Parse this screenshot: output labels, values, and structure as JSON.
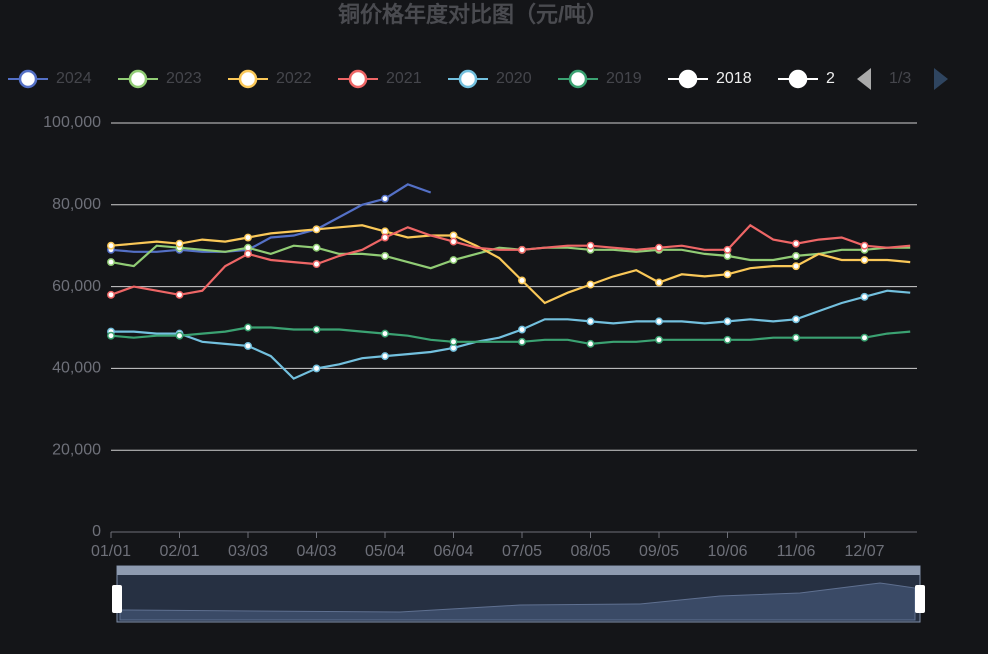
{
  "chart_data": {
    "type": "line",
    "title": "铜价格年度对比图（元/吨）",
    "categories": [
      "01/01",
      null,
      null,
      "02/01",
      null,
      null,
      "03/03",
      null,
      null,
      "04/03",
      null,
      null,
      "05/04",
      null,
      null,
      "06/04",
      null,
      null,
      "07/05",
      null,
      null,
      "08/05",
      null,
      null,
      "09/05",
      null,
      null,
      "10/06",
      null,
      null,
      "11/06",
      null,
      null,
      "12/07",
      null,
      null
    ],
    "ylim": [
      0,
      100000
    ],
    "yticks": [
      0,
      {
        "value": 20000,
        "label": "20,000"
      },
      {
        "value": 40000,
        "label": "40,000"
      },
      {
        "value": 60000,
        "label": "60,000"
      },
      {
        "value": 80000,
        "label": "80,000"
      },
      {
        "value": 100000,
        "label": "100,000"
      }
    ],
    "grid": true,
    "legend_page": "1/3",
    "series": [
      {
        "name": "2024",
        "color": "#5470c6",
        "values": [
          69000,
          68500,
          68500,
          69000,
          68500,
          68500,
          69000,
          72000,
          72500,
          74000,
          77000,
          80000,
          81500,
          85000,
          83000,
          null,
          null,
          null,
          null,
          null,
          null,
          null,
          null,
          null,
          null,
          null,
          null,
          null,
          null,
          null,
          null,
          null,
          null,
          null,
          null,
          null
        ]
      },
      {
        "name": "2023",
        "color": "#91cc75",
        "values": [
          66000,
          65000,
          70000,
          69500,
          69000,
          68500,
          69500,
          68000,
          70000,
          69500,
          68000,
          68000,
          67500,
          66000,
          64500,
          66500,
          68000,
          69500,
          69000,
          69500,
          69500,
          69000,
          69000,
          68500,
          69000,
          69000,
          68000,
          67500,
          66500,
          66500,
          67500,
          68000,
          69000,
          69000,
          69500,
          69500
        ]
      },
      {
        "name": "2022",
        "color": "#fac858",
        "values": [
          70000,
          70500,
          71000,
          70500,
          71500,
          71000,
          72000,
          73000,
          73500,
          74000,
          74500,
          75000,
          73500,
          72000,
          72500,
          72500,
          70000,
          67000,
          61500,
          56000,
          58500,
          60500,
          62500,
          64000,
          61000,
          63000,
          62500,
          63000,
          64500,
          65000,
          65000,
          68000,
          66500,
          66500,
          66500,
          66000
        ]
      },
      {
        "name": "2021",
        "color": "#ee6666",
        "values": [
          58000,
          60000,
          59000,
          58000,
          59000,
          65000,
          68000,
          66500,
          66000,
          65500,
          67500,
          69000,
          72000,
          74500,
          72500,
          71000,
          69500,
          69000,
          69000,
          69500,
          70000,
          70000,
          69500,
          69000,
          69500,
          70000,
          69000,
          69000,
          75000,
          71500,
          70500,
          71500,
          72000,
          70000,
          69500,
          70000
        ]
      },
      {
        "name": "2020",
        "color": "#73c0de",
        "values": [
          49000,
          49000,
          48500,
          48500,
          46500,
          46000,
          45500,
          43000,
          37500,
          40000,
          41000,
          42500,
          43000,
          43500,
          44000,
          45000,
          46500,
          47500,
          49500,
          52000,
          52000,
          51500,
          51000,
          51500,
          51500,
          51500,
          51000,
          51500,
          52000,
          51500,
          52000,
          54000,
          56000,
          57500,
          59000,
          58500
        ]
      },
      {
        "name": "2019",
        "color": "#3ba272",
        "values": [
          48000,
          47500,
          48000,
          48000,
          48500,
          49000,
          50000,
          50000,
          49500,
          49500,
          49500,
          49000,
          48500,
          48000,
          47000,
          46500,
          46500,
          46500,
          46500,
          47000,
          47000,
          46000,
          46500,
          46500,
          47000,
          47000,
          47000,
          47000,
          47000,
          47500,
          47500,
          47500,
          47500,
          47500,
          48500,
          49000
        ]
      },
      {
        "name": "2018",
        "color": "#ffffff",
        "values": [
          null,
          null,
          null,
          null,
          null,
          null,
          null,
          null,
          null,
          null,
          null,
          null,
          null,
          null,
          null,
          null,
          null,
          null,
          null,
          null,
          null,
          null,
          null,
          null,
          null,
          null,
          null,
          null,
          null,
          null,
          null,
          null,
          null,
          null,
          null,
          null
        ]
      },
      {
        "name": "2",
        "color": "#ffffff",
        "values": [
          null,
          null,
          null,
          null,
          null,
          null,
          null,
          null,
          null,
          null,
          null,
          null,
          null,
          null,
          null,
          null,
          null,
          null,
          null,
          null,
          null,
          null,
          null,
          null,
          null,
          null,
          null,
          null,
          null,
          null,
          null,
          null,
          null,
          null,
          null,
          null
        ]
      }
    ]
  }
}
